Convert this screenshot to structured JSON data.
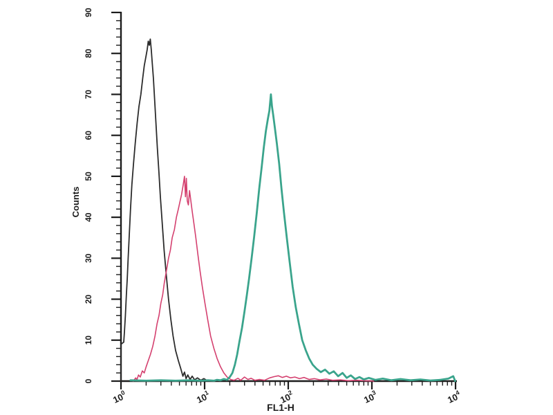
{
  "figure": {
    "background": "#ffffff",
    "axis_color": "#1c1c1c"
  },
  "chart_data": {
    "type": "line",
    "subtype": "flow-cytometry-histogram-overlay",
    "title": "",
    "xlabel": "FL1-H",
    "ylabel": "Counts",
    "x_scale": "log",
    "x_range": [
      1,
      10000
    ],
    "y_range": [
      0,
      90
    ],
    "grid": false,
    "legend_position": "none",
    "x_ticks": {
      "base": "10",
      "exponents": [
        "0",
        "1",
        "2",
        "3",
        "4"
      ]
    },
    "y_ticks": [
      "0",
      "10",
      "20",
      "30",
      "40",
      "50",
      "60",
      "70",
      "80",
      "90"
    ],
    "y_minor_step": 2,
    "x_minor_multiples": [
      2,
      3,
      4,
      5,
      6,
      7,
      8,
      9
    ],
    "series": [
      {
        "name": "black-curve",
        "color": "#2b2b2b",
        "stroke_width": 1.8,
        "peak": {
          "x": 2.3,
          "count": 83
        },
        "points": [
          [
            1.0,
            0
          ],
          [
            1.0,
            9.0
          ],
          [
            1.08,
            9.5
          ],
          [
            1.1,
            12
          ],
          [
            1.13,
            16
          ],
          [
            1.16,
            21
          ],
          [
            1.19,
            25
          ],
          [
            1.22,
            30
          ],
          [
            1.26,
            36
          ],
          [
            1.3,
            42
          ],
          [
            1.35,
            48
          ],
          [
            1.41,
            53
          ],
          [
            1.48,
            58
          ],
          [
            1.56,
            63
          ],
          [
            1.64,
            67
          ],
          [
            1.73,
            70
          ],
          [
            1.82,
            74
          ],
          [
            1.9,
            77
          ],
          [
            1.98,
            79
          ],
          [
            2.06,
            81
          ],
          [
            2.12,
            83
          ],
          [
            2.18,
            82
          ],
          [
            2.24,
            83.5
          ],
          [
            2.3,
            81
          ],
          [
            2.36,
            78
          ],
          [
            2.44,
            74
          ],
          [
            2.52,
            69
          ],
          [
            2.62,
            63
          ],
          [
            2.72,
            57
          ],
          [
            2.84,
            51
          ],
          [
            2.96,
            45
          ],
          [
            3.1,
            39
          ],
          [
            3.28,
            32
          ],
          [
            3.48,
            26
          ],
          [
            3.7,
            20
          ],
          [
            3.95,
            15
          ],
          [
            4.2,
            11
          ],
          [
            4.5,
            7.5
          ],
          [
            4.85,
            5
          ],
          [
            5.2,
            3
          ],
          [
            5.5,
            1.2
          ],
          [
            5.75,
            2.2
          ],
          [
            6.0,
            0.6
          ],
          [
            6.3,
            1.5
          ],
          [
            6.7,
            0.4
          ],
          [
            7.1,
            1.2
          ],
          [
            7.6,
            0.3
          ],
          [
            8.2,
            0.8
          ],
          [
            9.0,
            0.2
          ],
          [
            9.8,
            0.6
          ],
          [
            10.8,
            0.1
          ],
          [
            12,
            0
          ]
        ]
      },
      {
        "name": "pink-curve",
        "color": "#d4406f",
        "stroke_width": 1.6,
        "peak": {
          "x": 6,
          "count": 50
        },
        "points": [
          [
            1.4,
            0
          ],
          [
            1.5,
            0.8
          ],
          [
            1.55,
            0.3
          ],
          [
            1.62,
            1.5
          ],
          [
            1.7,
            1.0
          ],
          [
            1.8,
            2.5
          ],
          [
            1.9,
            2.0
          ],
          [
            2.0,
            3.5
          ],
          [
            2.12,
            5
          ],
          [
            2.25,
            6.5
          ],
          [
            2.4,
            8.5
          ],
          [
            2.55,
            11
          ],
          [
            2.7,
            14
          ],
          [
            2.85,
            16
          ],
          [
            3.0,
            19
          ],
          [
            3.15,
            21
          ],
          [
            3.3,
            24
          ],
          [
            3.5,
            27
          ],
          [
            3.7,
            30
          ],
          [
            3.9,
            32
          ],
          [
            4.1,
            35
          ],
          [
            4.35,
            37
          ],
          [
            4.6,
            40
          ],
          [
            4.85,
            42
          ],
          [
            5.1,
            44
          ],
          [
            5.3,
            45.5
          ],
          [
            5.55,
            48
          ],
          [
            5.75,
            50
          ],
          [
            5.9,
            45
          ],
          [
            6.05,
            49.5
          ],
          [
            6.2,
            44
          ],
          [
            6.4,
            43
          ],
          [
            6.6,
            46.5
          ],
          [
            6.85,
            44
          ],
          [
            7.1,
            41.5
          ],
          [
            7.45,
            38.5
          ],
          [
            7.85,
            35
          ],
          [
            8.3,
            31
          ],
          [
            8.8,
            27
          ],
          [
            9.4,
            23
          ],
          [
            10.1,
            19
          ],
          [
            10.9,
            15
          ],
          [
            11.8,
            11
          ],
          [
            12.9,
            8
          ],
          [
            14.1,
            5.5
          ],
          [
            15.5,
            3.5
          ],
          [
            17.0,
            2.0
          ],
          [
            18.6,
            1.0
          ],
          [
            20.5,
            0.4
          ],
          [
            22.5,
            0.2
          ],
          [
            25,
            0.7
          ],
          [
            27,
            0.2
          ],
          [
            30,
            1.0
          ],
          [
            33,
            0.4
          ],
          [
            36,
            0.7
          ],
          [
            40,
            0.2
          ],
          [
            45,
            0.4
          ],
          [
            52,
            0.2
          ],
          [
            60,
            0.8
          ],
          [
            68,
            1.1
          ],
          [
            76,
            1.3
          ],
          [
            85,
            0.9
          ],
          [
            95,
            1.2
          ],
          [
            106,
            0.8
          ],
          [
            120,
            1.0
          ],
          [
            136,
            0.6
          ],
          [
            155,
            0.9
          ],
          [
            178,
            0.4
          ],
          [
            205,
            0.6
          ],
          [
            240,
            0.3
          ],
          [
            285,
            0.5
          ],
          [
            340,
            0.2
          ],
          [
            420,
            0.3
          ],
          [
            520,
            0.1
          ],
          [
            650,
            0.2
          ],
          [
            820,
            0.1
          ],
          [
            1050,
            0
          ]
        ]
      },
      {
        "name": "teal-curve",
        "color": "#3aa48c",
        "stroke_width": 2.8,
        "peak": {
          "x": 62,
          "count": 70
        },
        "points": [
          [
            1.3,
            0.2
          ],
          [
            2,
            0.1
          ],
          [
            3,
            0.2
          ],
          [
            4.5,
            0.1
          ],
          [
            6.5,
            0.2
          ],
          [
            9,
            0.1
          ],
          [
            11,
            0.2
          ],
          [
            13,
            0.1
          ],
          [
            14,
            0.3
          ],
          [
            15.5,
            0.2
          ],
          [
            17,
            0.5
          ],
          [
            18.5,
            0.3
          ],
          [
            20,
            1.0
          ],
          [
            21.5,
            2.0
          ],
          [
            23,
            4.0
          ],
          [
            24.5,
            6.5
          ],
          [
            26,
            9.5
          ],
          [
            28,
            13
          ],
          [
            30,
            17
          ],
          [
            32,
            21
          ],
          [
            34,
            25
          ],
          [
            36.5,
            30
          ],
          [
            39,
            35
          ],
          [
            42,
            41
          ],
          [
            45,
            47
          ],
          [
            48,
            52
          ],
          [
            51,
            57
          ],
          [
            54,
            61
          ],
          [
            57,
            64
          ],
          [
            59.5,
            66
          ],
          [
            62,
            70
          ],
          [
            64,
            67
          ],
          [
            66,
            65
          ],
          [
            69,
            62
          ],
          [
            73,
            58
          ],
          [
            78,
            53
          ],
          [
            83,
            47
          ],
          [
            89,
            41
          ],
          [
            96,
            35
          ],
          [
            104,
            29
          ],
          [
            113,
            23
          ],
          [
            123,
            18
          ],
          [
            134,
            14
          ],
          [
            147,
            10
          ],
          [
            162,
            7.5
          ],
          [
            178,
            5.5
          ],
          [
            196,
            4.0
          ],
          [
            218,
            3.0
          ],
          [
            245,
            2.2
          ],
          [
            275,
            2.8
          ],
          [
            310,
            1.8
          ],
          [
            350,
            2.4
          ],
          [
            395,
            1.2
          ],
          [
            445,
            2.0
          ],
          [
            500,
            0.8
          ],
          [
            560,
            1.4
          ],
          [
            630,
            0.5
          ],
          [
            710,
            1.0
          ],
          [
            800,
            0.4
          ],
          [
            920,
            0.8
          ],
          [
            1100,
            0.3
          ],
          [
            1350,
            0.6
          ],
          [
            1700,
            0.2
          ],
          [
            2200,
            0.5
          ],
          [
            2900,
            0.2
          ],
          [
            3800,
            0.4
          ],
          [
            5000,
            0.15
          ],
          [
            6500,
            0.3
          ],
          [
            8200,
            0.6
          ],
          [
            9400,
            1.2
          ],
          [
            9900,
            0
          ]
        ]
      }
    ]
  }
}
